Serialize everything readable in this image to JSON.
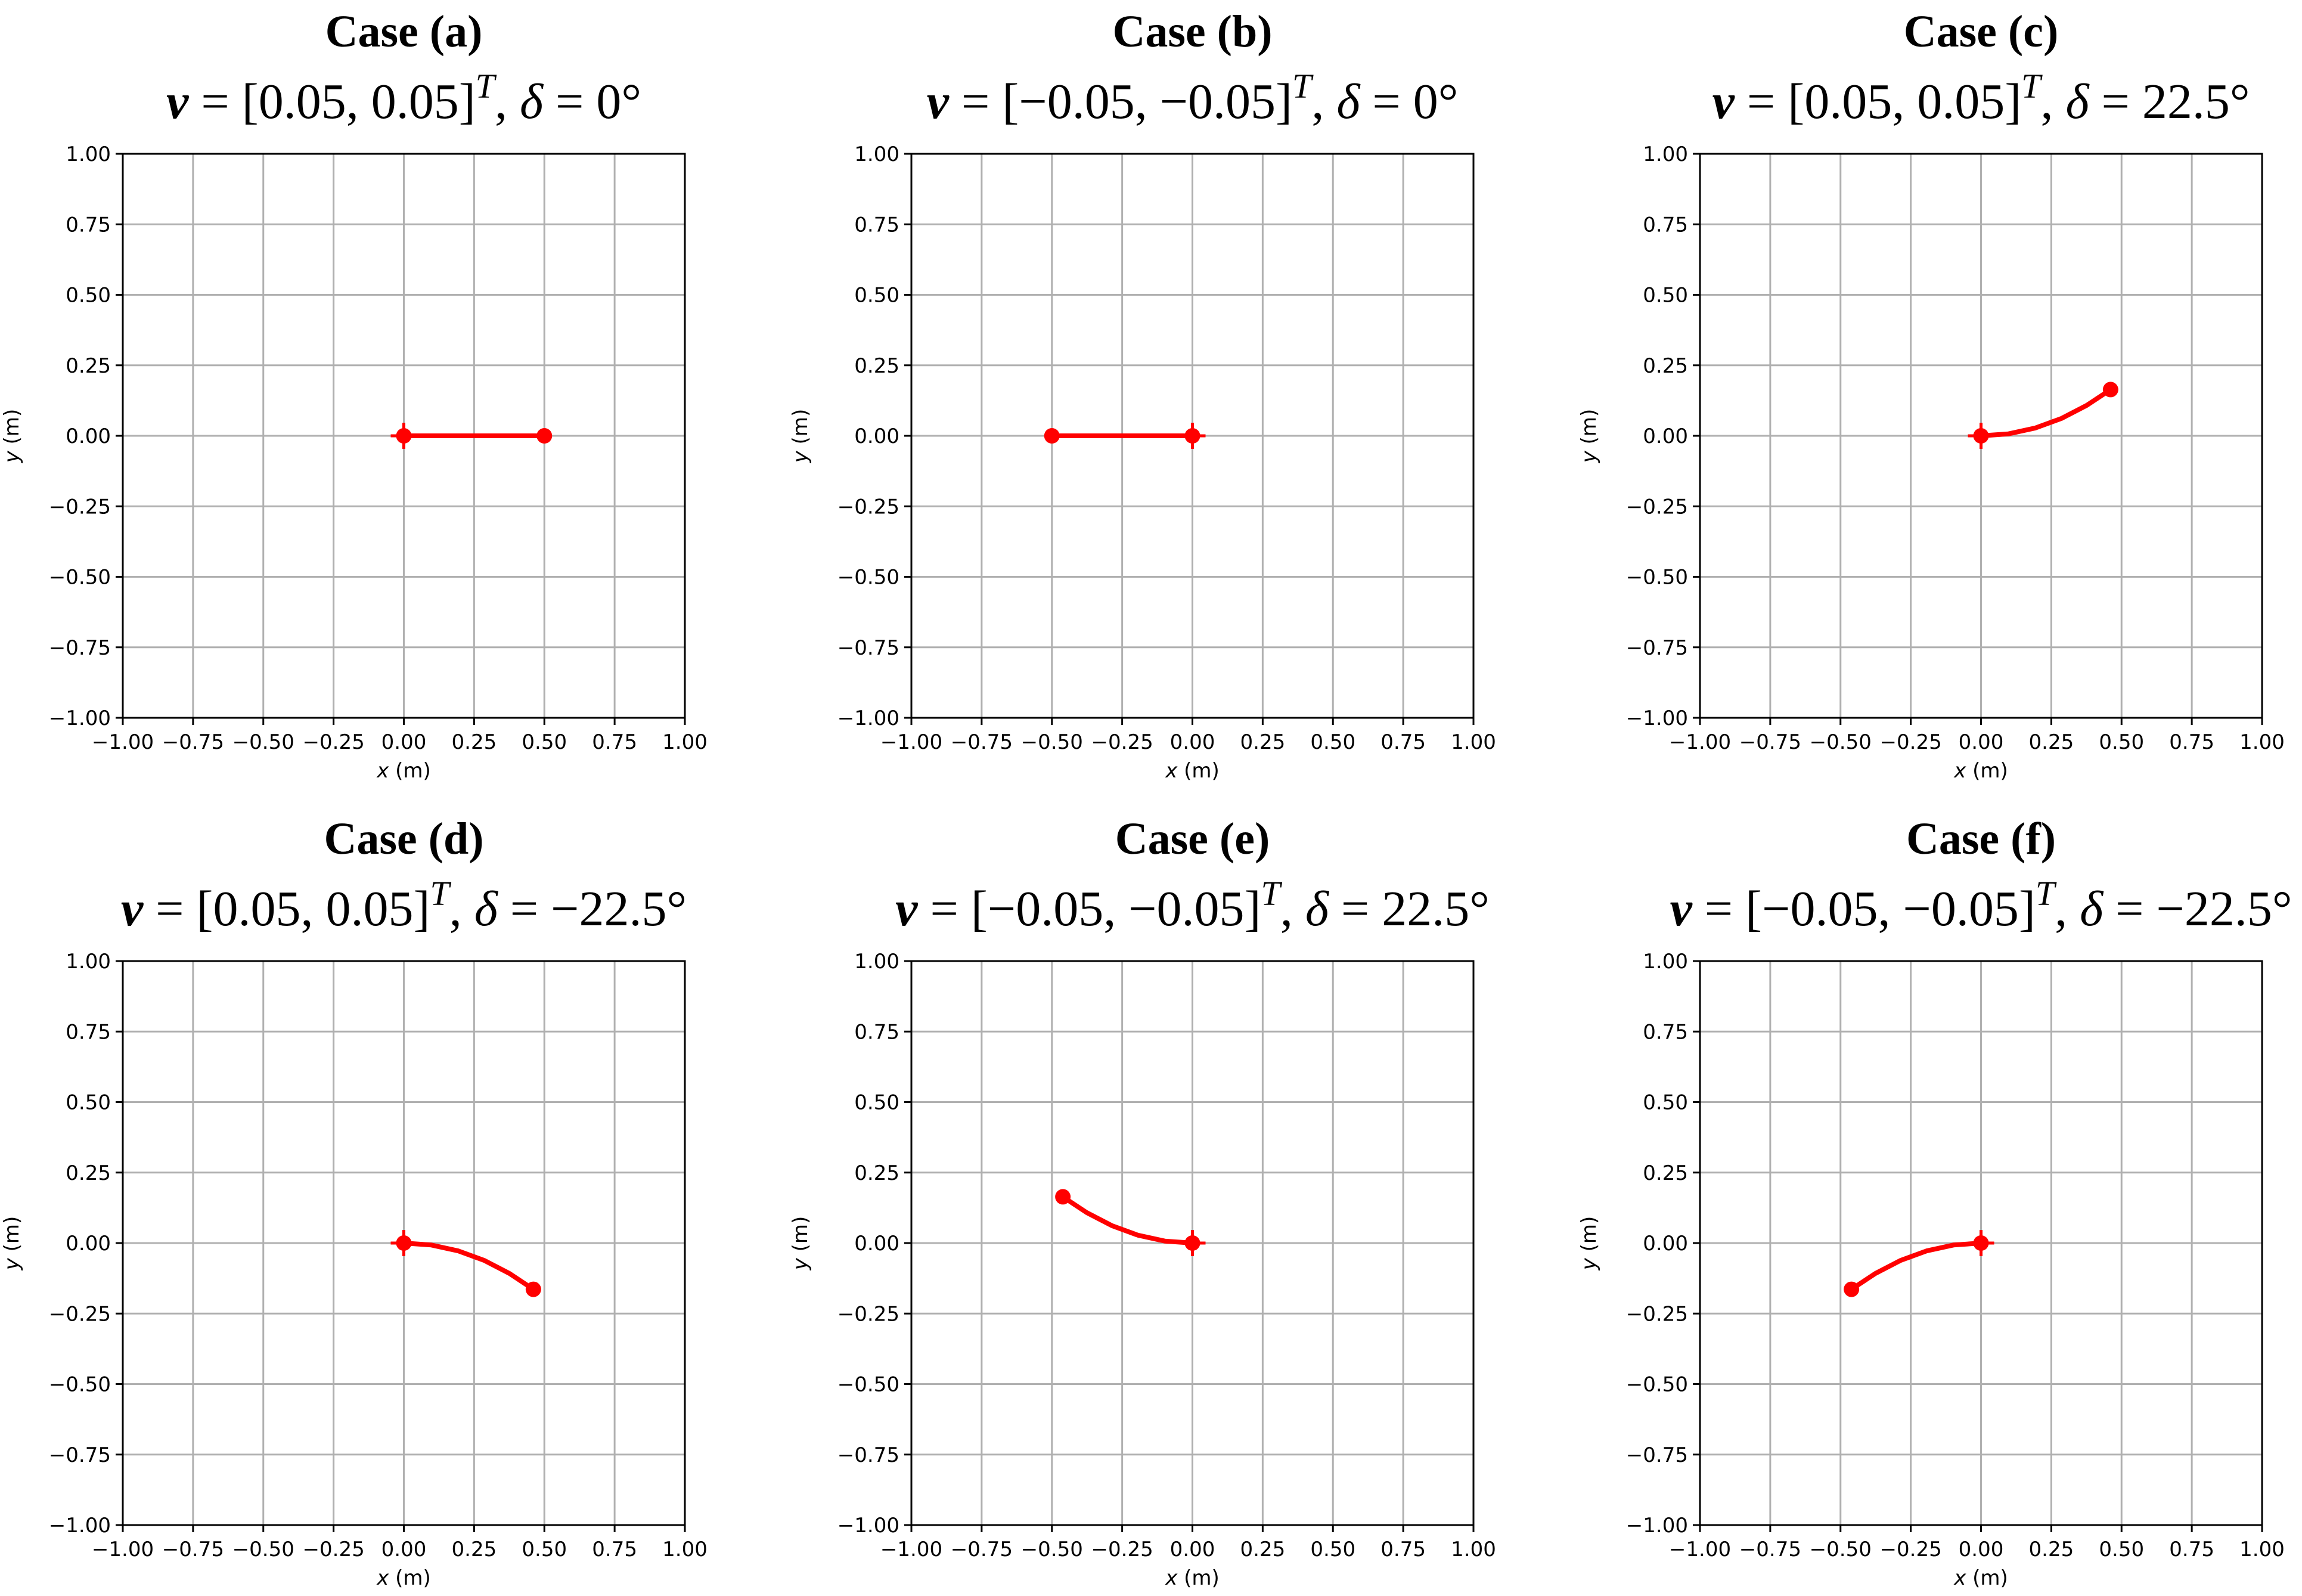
{
  "colors": {
    "trajectory": "#ff0000",
    "grid": "#b0b0b0",
    "axes": "#000000"
  },
  "chart_data": [
    {
      "type": "line",
      "title": "Case (a)",
      "subtitle": {
        "v1": "0.05",
        "v2": "0.05",
        "delta": "0"
      },
      "xlabel": "x (m)",
      "ylabel": "y (m)",
      "xlim": [
        -1,
        1
      ],
      "ylim": [
        -1,
        1
      ],
      "grid": true,
      "ticks": [
        "−1.00",
        "−0.75",
        "−0.50",
        "−0.25",
        "0.00",
        "0.25",
        "0.50",
        "0.75",
        "1.00"
      ],
      "series": [
        {
          "x": [
            0,
            0.5
          ],
          "y": [
            0,
            0
          ]
        }
      ]
    },
    {
      "type": "line",
      "title": "Case (b)",
      "subtitle": {
        "v1": "−0.05",
        "v2": "−0.05",
        "delta": "0"
      },
      "xlabel": "x (m)",
      "ylabel": "y (m)",
      "xlim": [
        -1,
        1
      ],
      "ylim": [
        -1,
        1
      ],
      "grid": true,
      "ticks": [
        "−1.00",
        "−0.75",
        "−0.50",
        "−0.25",
        "0.00",
        "0.25",
        "0.50",
        "0.75",
        "1.00"
      ],
      "series": [
        {
          "x": [
            0,
            -0.5
          ],
          "y": [
            0,
            0
          ]
        }
      ]
    },
    {
      "type": "line",
      "title": "Case (c)",
      "subtitle": {
        "v1": "0.05",
        "v2": "0.05",
        "delta": "22.5"
      },
      "xlabel": "x (m)",
      "ylabel": "y (m)",
      "xlim": [
        -1,
        1
      ],
      "ylim": [
        -1,
        1
      ],
      "grid": true,
      "ticks": [
        "−1.00",
        "−0.75",
        "−0.50",
        "−0.25",
        "0.00",
        "0.25",
        "0.50",
        "0.75",
        "1.00"
      ],
      "series": [
        {
          "x": [
            0,
            0.098,
            0.194,
            0.287,
            0.376,
            0.461
          ],
          "y": [
            0,
            0.007,
            0.028,
            0.062,
            0.108,
            0.164
          ]
        }
      ]
    },
    {
      "type": "line",
      "title": "Case (d)",
      "subtitle": {
        "v1": "0.05",
        "v2": "0.05",
        "delta": "−22.5"
      },
      "xlabel": "x (m)",
      "ylabel": "y (m)",
      "xlim": [
        -1,
        1
      ],
      "ylim": [
        -1,
        1
      ],
      "grid": true,
      "ticks": [
        "−1.00",
        "−0.75",
        "−0.50",
        "−0.25",
        "0.00",
        "0.25",
        "0.50",
        "0.75",
        "1.00"
      ],
      "series": [
        {
          "x": [
            0,
            0.098,
            0.194,
            0.287,
            0.376,
            0.461
          ],
          "y": [
            0,
            -0.007,
            -0.028,
            -0.062,
            -0.108,
            -0.164
          ]
        }
      ]
    },
    {
      "type": "line",
      "title": "Case (e)",
      "subtitle": {
        "v1": "−0.05",
        "v2": "−0.05",
        "delta": "22.5"
      },
      "xlabel": "x (m)",
      "ylabel": "y (m)",
      "xlim": [
        -1,
        1
      ],
      "ylim": [
        -1,
        1
      ],
      "grid": true,
      "ticks": [
        "−1.00",
        "−0.75",
        "−0.50",
        "−0.25",
        "0.00",
        "0.25",
        "0.50",
        "0.75",
        "1.00"
      ],
      "series": [
        {
          "x": [
            0,
            -0.098,
            -0.194,
            -0.287,
            -0.376,
            -0.461
          ],
          "y": [
            0,
            0.007,
            0.028,
            0.062,
            0.108,
            0.164
          ]
        }
      ]
    },
    {
      "type": "line",
      "title": "Case (f)",
      "subtitle": {
        "v1": "−0.05",
        "v2": "−0.05",
        "delta": "−22.5"
      },
      "xlabel": "x (m)",
      "ylabel": "y (m)",
      "xlim": [
        -1,
        1
      ],
      "ylim": [
        -1,
        1
      ],
      "grid": true,
      "ticks": [
        "−1.00",
        "−0.75",
        "−0.50",
        "−0.25",
        "0.00",
        "0.25",
        "0.50",
        "0.75",
        "1.00"
      ],
      "series": [
        {
          "x": [
            0,
            -0.098,
            -0.194,
            -0.287,
            -0.376,
            -0.461
          ],
          "y": [
            0,
            -0.007,
            -0.028,
            -0.062,
            -0.108,
            -0.164
          ]
        }
      ]
    }
  ]
}
